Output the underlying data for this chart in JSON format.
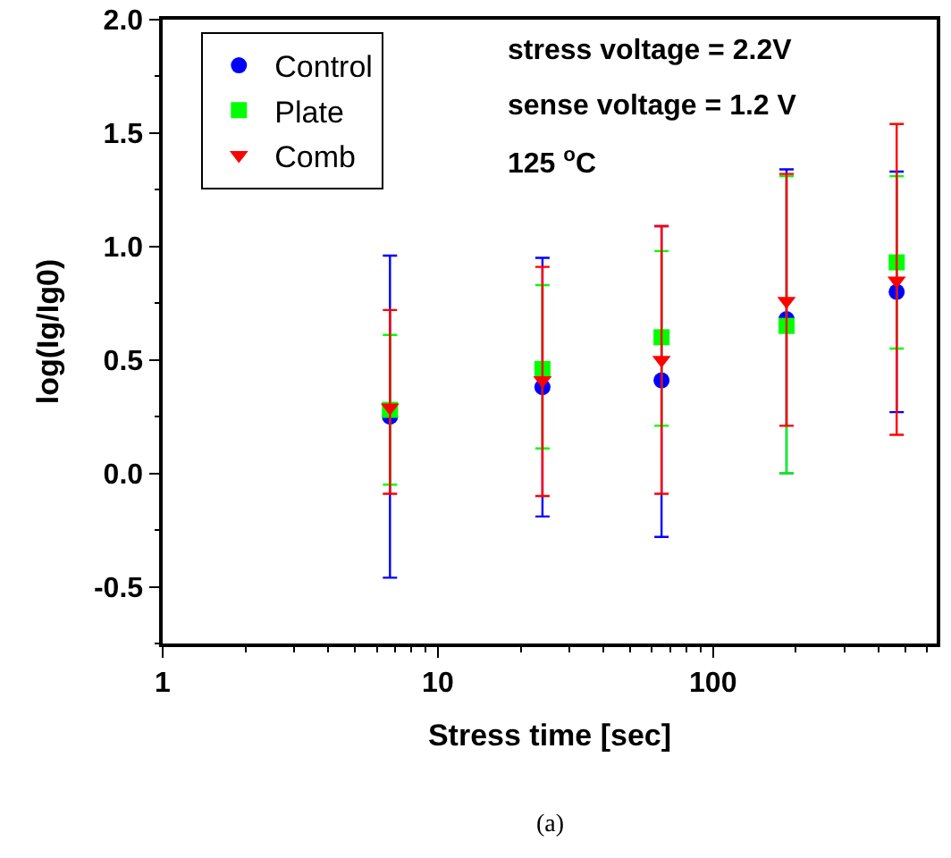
{
  "chart_data": {
    "type": "scatter",
    "xlabel": "Stress time [sec]",
    "ylabel": "log(Ig/Ig0)",
    "x": [
      6.7,
      24,
      65,
      185,
      465
    ],
    "log": "x",
    "xlim": [
      1,
      650
    ],
    "xticks": [
      1,
      10,
      100
    ],
    "ylim": [
      -0.75,
      2.0
    ],
    "yticks": [
      -0.5,
      {
        "value": 0,
        "label": "0.0"
      },
      0.5,
      {
        "value": 1,
        "label": "1.0"
      },
      1.5,
      {
        "value": 2,
        "label": "2.0"
      }
    ],
    "legend": "top left",
    "series": [
      {
        "name": "Control",
        "color": "#0000ff",
        "marker": "circle",
        "values": [
          0.25,
          0.38,
          0.41,
          0.68,
          0.8
        ],
        "errors": [
          [
            -0.46,
            0.96
          ],
          [
            -0.19,
            0.95
          ],
          [
            -0.28,
            1.09
          ],
          [
            0.0,
            1.34
          ],
          [
            0.27,
            1.33
          ]
        ]
      },
      {
        "name": "Plate",
        "color": "#00ff00",
        "marker": "square",
        "values": [
          0.28,
          0.46,
          0.6,
          0.65,
          0.93
        ],
        "errors": [
          [
            -0.05,
            0.61
          ],
          [
            0.11,
            0.83
          ],
          [
            0.21,
            0.98
          ],
          [
            0.0,
            1.31
          ],
          [
            0.55,
            1.31
          ]
        ]
      },
      {
        "name": "Comb",
        "color": "#ff0000",
        "marker": "triangle",
        "values": [
          0.29,
          0.41,
          0.5,
          0.76,
          0.85
        ],
        "errors": [
          [
            -0.09,
            0.72
          ],
          [
            -0.1,
            0.91
          ],
          [
            -0.09,
            1.09
          ],
          [
            0.21,
            1.32
          ],
          [
            0.17,
            1.54
          ]
        ]
      }
    ],
    "annotations": [
      "stress voltage = 2.2V",
      "sense voltage = 1.2 V",
      "125 $^{o}$C",
      "(a)"
    ]
  }
}
